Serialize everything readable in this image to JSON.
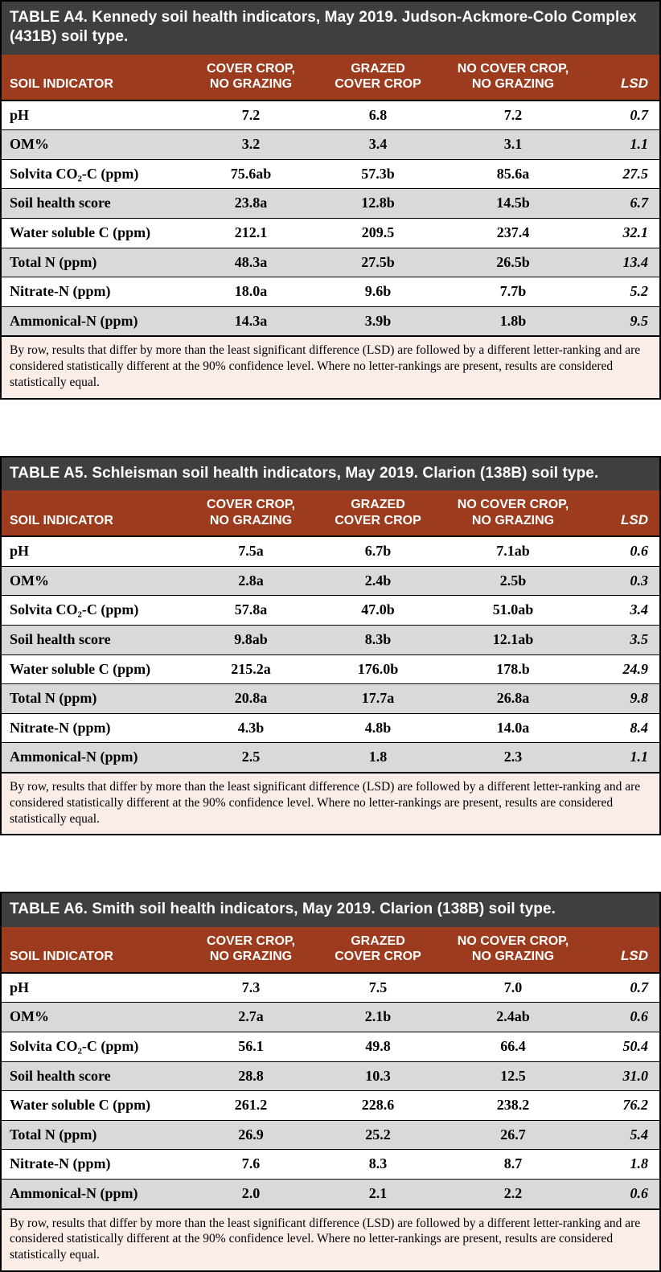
{
  "colors": {
    "title_bar_bg": "#3f3f3f",
    "title_text": "#ffffff",
    "header_bg": "#9c3b1d",
    "header_text": "#ffffff",
    "row_bg": "#ffffff",
    "row_alt_bg": "#d9d9d9",
    "footnote_bg": "#faece7",
    "border": "#000000"
  },
  "columns": [
    {
      "label": "SOIL INDICATOR",
      "align": "left"
    },
    {
      "label": "COVER CROP,\nNO GRAZING",
      "align": "center"
    },
    {
      "label": "GRAZED\nCOVER CROP",
      "align": "center"
    },
    {
      "label": "NO COVER CROP,\nNO GRAZING",
      "align": "center"
    },
    {
      "label": "LSD",
      "align": "right"
    }
  ],
  "footer_note": "By row, results that differ by more than the least significant difference (LSD) are followed by a different letter-ranking and are considered statistically different at the 90% confidence level. Where no letter-rankings are present, results are considered statistically equal.",
  "tables": [
    {
      "label": "TABLE A4.",
      "caption": "Kennedy soil health indicators, May 2019. Judson-Ackmore-Colo Complex (431B) soil type.",
      "rows": [
        {
          "indicator": "pH",
          "values": [
            "7.2",
            "6.8",
            "7.2"
          ],
          "lsd": "0.7"
        },
        {
          "indicator": "OM%",
          "values": [
            "3.2",
            "3.4",
            "3.1"
          ],
          "lsd": "1.1"
        },
        {
          "indicator": "Solvita CO₂-C (ppm)",
          "values": [
            "75.6ab",
            "57.3b",
            "85.6a"
          ],
          "lsd": "27.5"
        },
        {
          "indicator": "Soil health score",
          "values": [
            "23.8a",
            "12.8b",
            "14.5b"
          ],
          "lsd": "6.7"
        },
        {
          "indicator": "Water soluble C (ppm)",
          "values": [
            "212.1",
            "209.5",
            "237.4"
          ],
          "lsd": "32.1"
        },
        {
          "indicator": "Total N (ppm)",
          "values": [
            "48.3a",
            "27.5b",
            "26.5b"
          ],
          "lsd": "13.4"
        },
        {
          "indicator": "Nitrate-N (ppm)",
          "values": [
            "18.0a",
            "9.6b",
            "7.7b"
          ],
          "lsd": "5.2"
        },
        {
          "indicator": "Ammonical-N (ppm)",
          "values": [
            "14.3a",
            "3.9b",
            "1.8b"
          ],
          "lsd": "9.5"
        }
      ]
    },
    {
      "label": "TABLE A5.",
      "caption": "Schleisman soil health indicators, May 2019. Clarion (138B) soil type.",
      "rows": [
        {
          "indicator": "pH",
          "values": [
            "7.5a",
            "6.7b",
            "7.1ab"
          ],
          "lsd": "0.6"
        },
        {
          "indicator": "OM%",
          "values": [
            "2.8a",
            "2.4b",
            "2.5b"
          ],
          "lsd": "0.3"
        },
        {
          "indicator": "Solvita CO₂-C (ppm)",
          "values": [
            "57.8a",
            "47.0b",
            "51.0ab"
          ],
          "lsd": "3.4"
        },
        {
          "indicator": "Soil health score",
          "values": [
            "9.8ab",
            "8.3b",
            "12.1ab"
          ],
          "lsd": "3.5"
        },
        {
          "indicator": "Water soluble C (ppm)",
          "values": [
            "215.2a",
            "176.0b",
            "178.b"
          ],
          "lsd": "24.9"
        },
        {
          "indicator": "Total N (ppm)",
          "values": [
            "20.8a",
            "17.7a",
            "26.8a"
          ],
          "lsd": "9.8"
        },
        {
          "indicator": "Nitrate-N (ppm)",
          "values": [
            "4.3b",
            "4.8b",
            "14.0a"
          ],
          "lsd": "8.4"
        },
        {
          "indicator": "Ammonical-N (ppm)",
          "values": [
            "2.5",
            "1.8",
            "2.3"
          ],
          "lsd": "1.1"
        }
      ]
    },
    {
      "label": "TABLE A6.",
      "caption": "Smith soil health indicators, May 2019. Clarion (138B) soil type.",
      "rows": [
        {
          "indicator": "pH",
          "values": [
            "7.3",
            "7.5",
            "7.0"
          ],
          "lsd": "0.7"
        },
        {
          "indicator": "OM%",
          "values": [
            "2.7a",
            "2.1b",
            "2.4ab"
          ],
          "lsd": "0.6"
        },
        {
          "indicator": "Solvita CO₂-C (ppm)",
          "values": [
            "56.1",
            "49.8",
            "66.4"
          ],
          "lsd": "50.4"
        },
        {
          "indicator": "Soil health score",
          "values": [
            "28.8",
            "10.3",
            "12.5"
          ],
          "lsd": "31.0"
        },
        {
          "indicator": "Water soluble C (ppm)",
          "values": [
            "261.2",
            "228.6",
            "238.2"
          ],
          "lsd": "76.2"
        },
        {
          "indicator": "Total N (ppm)",
          "values": [
            "26.9",
            "25.2",
            "26.7"
          ],
          "lsd": "5.4"
        },
        {
          "indicator": "Nitrate-N (ppm)",
          "values": [
            "7.6",
            "8.3",
            "8.7"
          ],
          "lsd": "1.8"
        },
        {
          "indicator": "Ammonical-N (ppm)",
          "values": [
            "2.0",
            "2.1",
            "2.2"
          ],
          "lsd": "0.6"
        }
      ]
    }
  ]
}
